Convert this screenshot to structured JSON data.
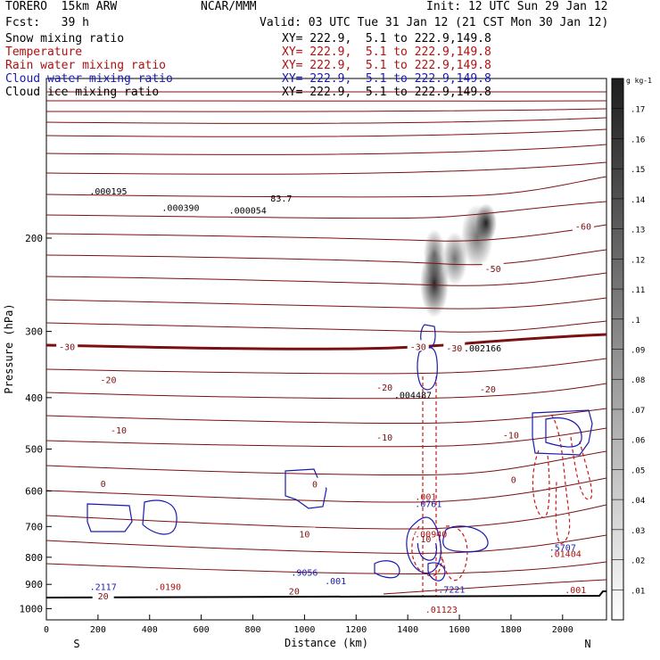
{
  "header": {
    "model": "TORERO  15km ARW",
    "center": "NCAR/MMM",
    "init": "Init: 12 UTC Sun 29 Jan 12",
    "fcst": "Fcst:   39 h",
    "valid": "Valid: 03 UTC Tue 31 Jan 12 (21 CST Mon 30 Jan 12)"
  },
  "legend_rows": [
    {
      "field": "Snow mixing ratio",
      "xy": "XY= 222.9,  5.1 to 222.9,149.8",
      "color": "#000000"
    },
    {
      "field": "Temperature",
      "xy": "XY= 222.9,  5.1 to 222.9,149.8",
      "color": "#b01010"
    },
    {
      "field": "Rain water mixing ratio",
      "xy": "XY= 222.9,  5.1 to 222.9,149.8",
      "color": "#b01010"
    },
    {
      "field": "Cloud water mixing ratio",
      "xy": "XY= 222.9,  5.1 to 222.9,149.8",
      "color": "#1a1ab0"
    },
    {
      "field": "Cloud ice mixing ratio",
      "xy": "XY= 222.9,  5.1 to 222.9,149.8",
      "color": "#000000"
    }
  ],
  "chart_data": {
    "type": "contour cross-section",
    "xlabel": "Distance (km)",
    "ylabel": "Pressure (hPa)",
    "x_ticks": [
      "0",
      "200",
      "400",
      "600",
      "800",
      "1000",
      "1200",
      "1400",
      "1600",
      "1800",
      "2000"
    ],
    "y_ticks": [
      "200",
      "300",
      "400",
      "500",
      "600",
      "700",
      "800",
      "900",
      "1000"
    ],
    "xlim": [
      0,
      2170
    ],
    "ylim_log": [
      1050,
      100
    ],
    "left_end_label": "S",
    "right_end_label": "N",
    "colorbar": {
      "unit": "g kg-1",
      "labels": [
        ".01",
        ".02",
        ".03",
        ".04",
        ".05",
        ".06",
        ".07",
        ".08",
        ".09",
        ".1",
        ".11",
        ".12",
        ".13",
        ".14",
        ".15",
        ".16",
        ".17"
      ]
    },
    "temperature_labels": [
      {
        "text": "-60",
        "x": 2080,
        "p": 190
      },
      {
        "text": "-50",
        "x": 1730,
        "p": 228
      },
      {
        "text": "-30",
        "x": 80,
        "p": 320
      },
      {
        "text": "-30",
        "x": 1440,
        "p": 320
      },
      {
        "text": "-30",
        "x": 1580,
        "p": 322
      },
      {
        "text": "-20",
        "x": 240,
        "p": 370
      },
      {
        "text": "-20",
        "x": 1310,
        "p": 382
      },
      {
        "text": "-20",
        "x": 1710,
        "p": 385
      },
      {
        "text": "-10",
        "x": 280,
        "p": 460
      },
      {
        "text": "-10",
        "x": 1310,
        "p": 475
      },
      {
        "text": "-10",
        "x": 1800,
        "p": 470
      },
      {
        "text": "0",
        "x": 220,
        "p": 580
      },
      {
        "text": "0",
        "x": 1040,
        "p": 582
      },
      {
        "text": "0",
        "x": 1810,
        "p": 570
      },
      {
        "text": "10",
        "x": 1000,
        "p": 722
      },
      {
        "text": "10",
        "x": 1470,
        "p": 738
      },
      {
        "text": "20",
        "x": 220,
        "p": 945
      },
      {
        "text": "20",
        "x": 960,
        "p": 925
      }
    ],
    "extremum_labels": [
      {
        "text": ".000195",
        "x": 240,
        "p": 163,
        "color": "#000000"
      },
      {
        "text": ".000390",
        "x": 520,
        "p": 175,
        "color": "#000000"
      },
      {
        "text": ".000054",
        "x": 780,
        "p": 177,
        "color": "#000000"
      },
      {
        "text": "83.7",
        "x": 910,
        "p": 168,
        "color": "#000000"
      },
      {
        "text": ".004487",
        "x": 1420,
        "p": 395,
        "color": "#000000"
      },
      {
        "text": ".002166",
        "x": 1690,
        "p": 322,
        "color": "#000000"
      },
      {
        "text": ".001",
        "x": 1470,
        "p": 614,
        "color": "#b01010"
      },
      {
        "text": ".0761",
        "x": 1480,
        "p": 633,
        "color": "#1a1ab0"
      },
      {
        "text": ".00940",
        "x": 1490,
        "p": 722,
        "color": "#b01010"
      },
      {
        "text": ".5707",
        "x": 2000,
        "p": 765,
        "color": "#1a1ab0"
      },
      {
        "text": ".01404",
        "x": 2010,
        "p": 787,
        "color": "#b01010"
      },
      {
        "text": ".001",
        "x": 2050,
        "p": 920,
        "color": "#b01010"
      },
      {
        "text": ".9056",
        "x": 1000,
        "p": 853,
        "color": "#1a1ab0"
      },
      {
        "text": ".001",
        "x": 1120,
        "p": 885,
        "color": "#1a1ab0"
      },
      {
        "text": ".2117",
        "x": 220,
        "p": 908,
        "color": "#1a1ab0"
      },
      {
        "text": ".0190",
        "x": 470,
        "p": 908,
        "color": "#b01010"
      },
      {
        "text": ".7221",
        "x": 1570,
        "p": 918,
        "color": "#1a1ab0"
      },
      {
        "text": ".01123",
        "x": 1530,
        "p": 1002,
        "color": "#b01010"
      }
    ]
  }
}
